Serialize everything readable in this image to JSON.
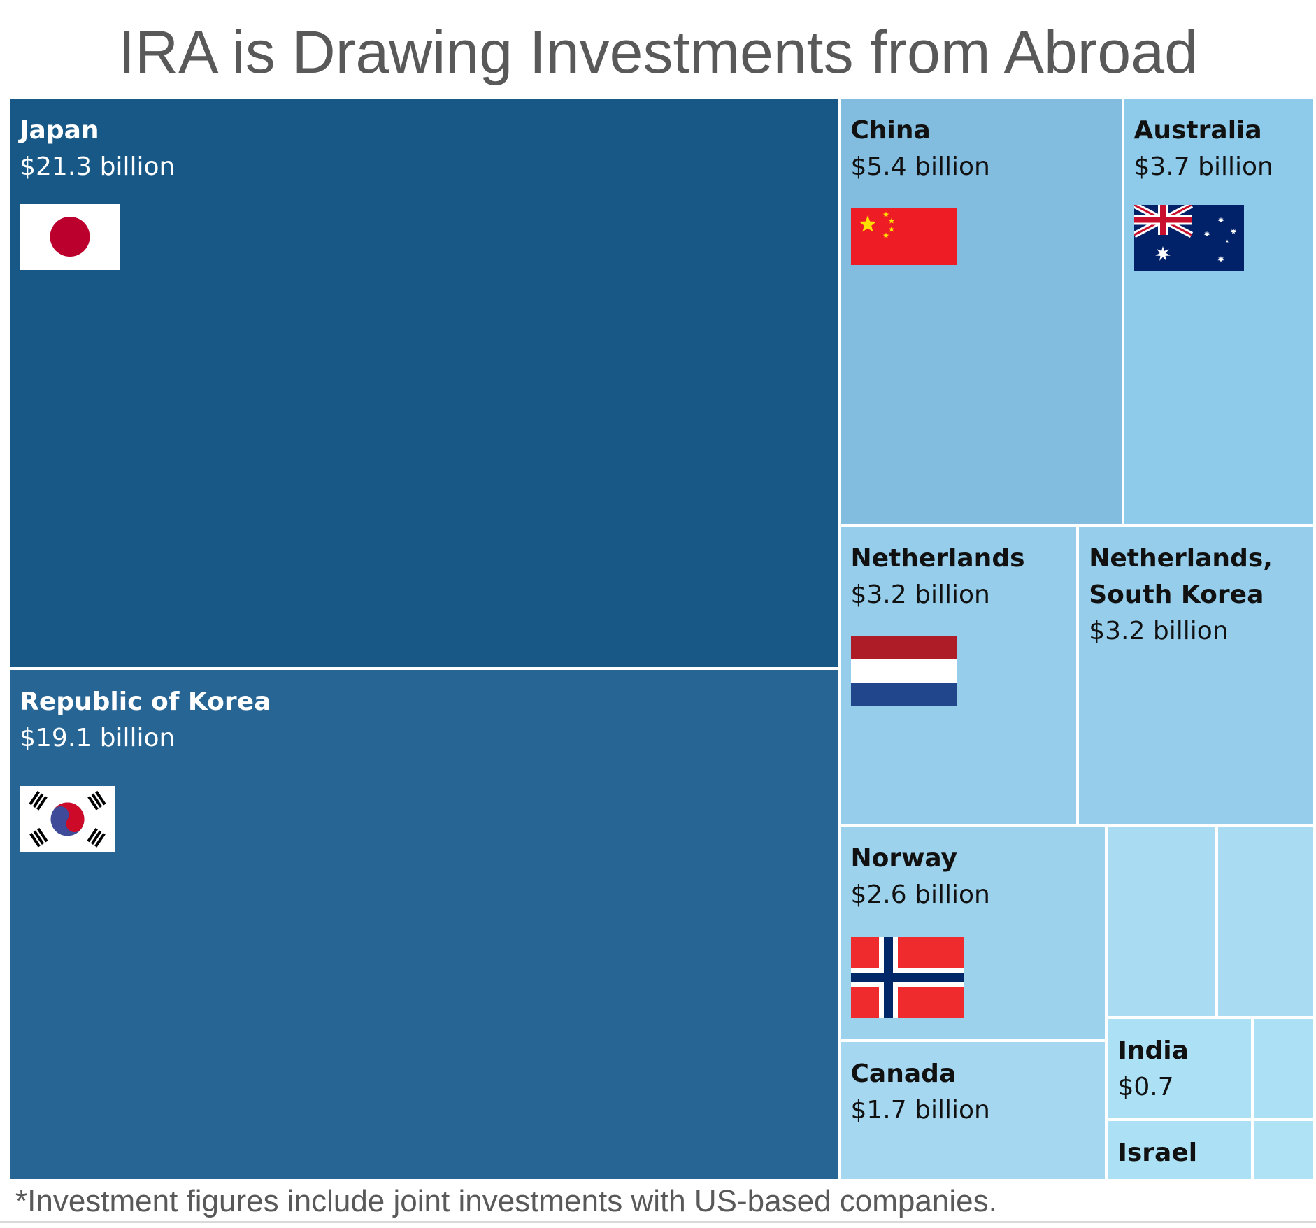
{
  "title": "IRA is Drawing Investments from Abroad",
  "footnote": "*Investment figures include joint investments with US-based companies.",
  "chart_data": {
    "type": "treemap",
    "unit": "billion USD",
    "items": [
      {
        "name": "Japan",
        "value": 21.3,
        "label": "$21.3 billion",
        "color": "#175887",
        "text_color": "#ffffff",
        "flag": "japan-flag"
      },
      {
        "name": "Republic of Korea",
        "value": 19.1,
        "label": "$19.1 billion",
        "color": "#276595",
        "text_color": "#ffffff",
        "flag": "south-korea-flag"
      },
      {
        "name": "China",
        "value": 5.4,
        "label": "$5.4 billion",
        "color": "#82bde0",
        "text_color": "#111111",
        "flag": "china-flag"
      },
      {
        "name": "Australia",
        "value": 3.7,
        "label": "$3.7 billion",
        "color": "#8ecaea",
        "text_color": "#111111",
        "flag": "australia-flag"
      },
      {
        "name": "Netherlands",
        "value": 3.2,
        "label": "$3.2 billion",
        "color": "#95cdea",
        "text_color": "#111111",
        "flag": "netherlands-flag"
      },
      {
        "name": "Netherlands,\nSouth Korea",
        "value": 3.2,
        "label": "$3.2 billion",
        "color": "#95cdea",
        "text_color": "#111111",
        "flag": ""
      },
      {
        "name": "Norway",
        "value": 2.6,
        "label": "$2.6 billion",
        "color": "#9cd2ec",
        "text_color": "#111111",
        "flag": "norway-flag"
      },
      {
        "name": "Canada",
        "value": 1.7,
        "label": "$1.7 billion",
        "color": "#a5d7f0",
        "text_color": "#111111",
        "flag": ""
      },
      {
        "name": "India",
        "value": 0.7,
        "label": "$0.7",
        "color": "#ace0f5",
        "text_color": "#111111",
        "flag": ""
      },
      {
        "name": "Israel",
        "value": null,
        "label": "",
        "color": "#ace0f5",
        "text_color": "#111111",
        "flag": ""
      },
      {
        "name": "",
        "value": null,
        "label": "",
        "color": "#a9dcf2",
        "text_color": "#111111",
        "flag": ""
      },
      {
        "name": "",
        "value": null,
        "label": "",
        "color": "#a9dcf2",
        "text_color": "#111111",
        "flag": ""
      },
      {
        "name": "",
        "value": null,
        "label": "",
        "color": "#ace0f5",
        "text_color": "#111111",
        "flag": ""
      },
      {
        "name": "",
        "value": null,
        "label": "",
        "color": "#b0e2f6",
        "text_color": "#111111",
        "flag": ""
      }
    ]
  }
}
